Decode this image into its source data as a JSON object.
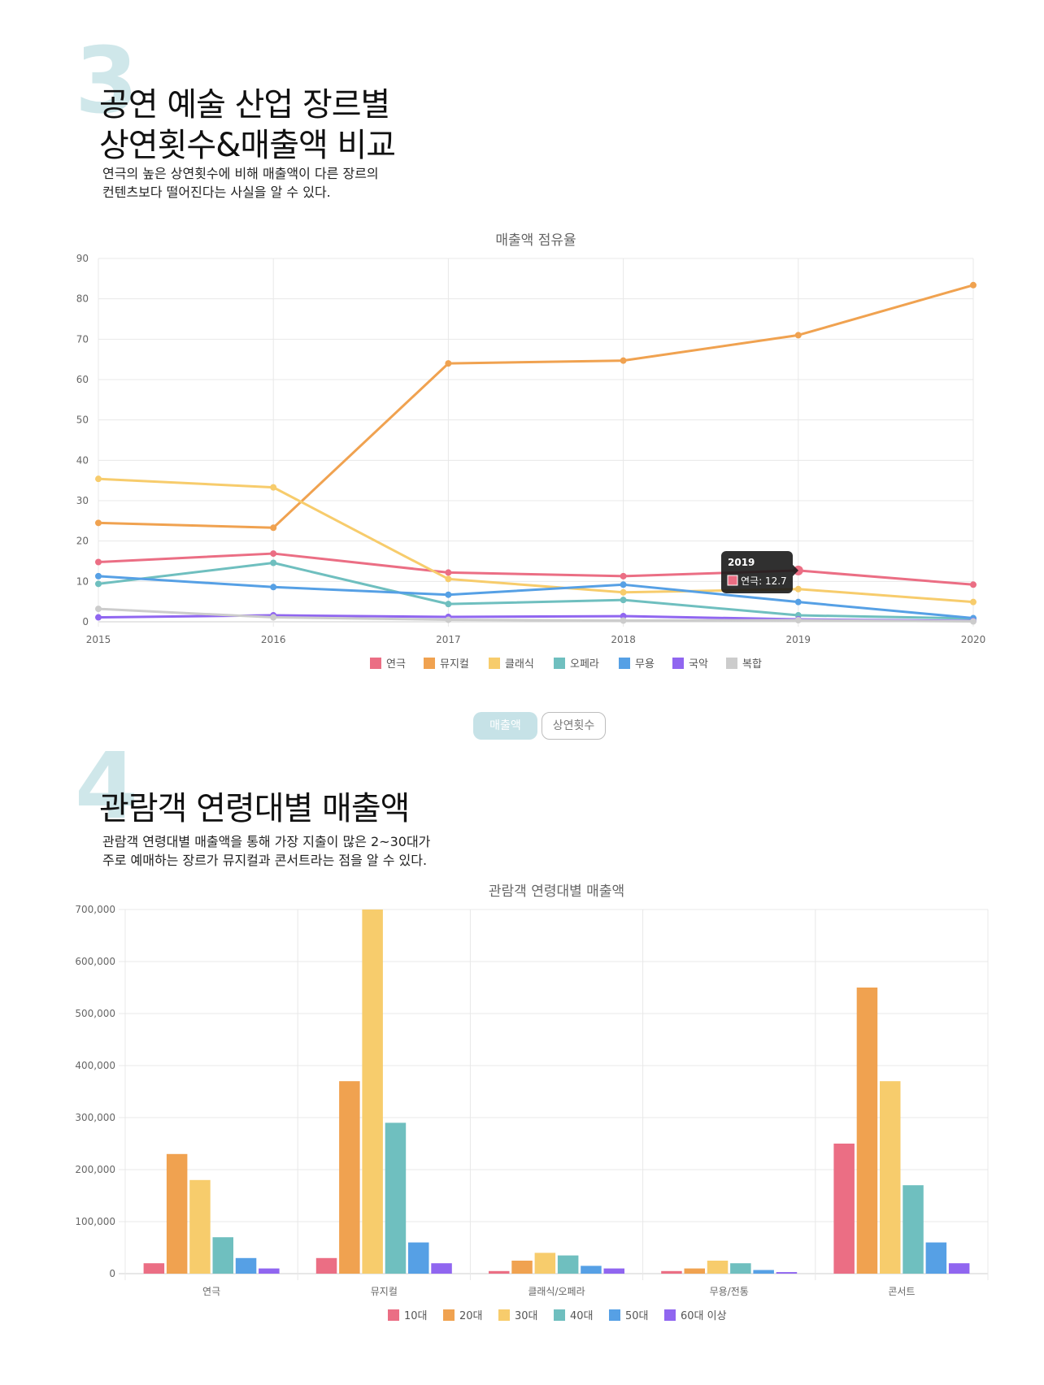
{
  "section3": {
    "number": "3",
    "title": "공연 예술 산업 장르별\n상연횟수&매출액 비교",
    "description": "연극의 높은 상연횟수에 비해 매출액이 다른 장르의\n컨텐츠보다 떨어진다는 사실을 알 수 있다."
  },
  "toggle": {
    "sales_label": "매출액",
    "performances_label": "상연횟수"
  },
  "section4": {
    "number": "4",
    "title": "관람객 연령대별 매출액",
    "description": "관람객 연령대별 매출액을 통해 가장 지출이 많은 2~30대가\n주로 예매하는 장르가 뮤지컬과 콘서트라는 점을 알 수 있다."
  },
  "colors": {
    "red": "#eb6e84",
    "orange": "#f0a250",
    "yellow": "#f7cc6c",
    "teal": "#6fbfbf",
    "blue": "#56a0e5",
    "purple": "#9066f0",
    "grey": "#cccccc",
    "section_number": "#cfe7ea"
  },
  "chart_data": [
    {
      "type": "line",
      "title": "매출액 점유율",
      "x": [
        "2015",
        "2016",
        "2017",
        "2018",
        "2019",
        "2020"
      ],
      "ylim": [
        0,
        90
      ],
      "yticks": [
        "0",
        "10",
        "20",
        "30",
        "40",
        "50",
        "60",
        "70",
        "80",
        "90"
      ],
      "grid": true,
      "legend_position": "bottom",
      "series": [
        {
          "name": "연극",
          "color": "#eb6e84",
          "values": [
            14.8,
            16.9,
            12.2,
            11.3,
            12.7,
            9.2
          ]
        },
        {
          "name": "뮤지컬",
          "color": "#f0a250",
          "values": [
            24.5,
            23.3,
            64.0,
            64.7,
            71.0,
            83.4
          ]
        },
        {
          "name": "클래식",
          "color": "#f7cc6c",
          "values": [
            35.4,
            33.3,
            10.6,
            7.3,
            8.1,
            4.9
          ]
        },
        {
          "name": "오페라",
          "color": "#6fbfbf",
          "values": [
            9.4,
            14.6,
            4.4,
            5.4,
            1.6,
            0.8
          ]
        },
        {
          "name": "무용",
          "color": "#56a0e5",
          "values": [
            11.3,
            8.6,
            6.7,
            9.2,
            4.9,
            0.9
          ]
        },
        {
          "name": "국악",
          "color": "#9066f0",
          "values": [
            1.1,
            1.6,
            1.2,
            1.4,
            0.6,
            0.2
          ]
        },
        {
          "name": "복합",
          "color": "#cccccc",
          "values": [
            3.2,
            1.1,
            0.5,
            0.3,
            0.4,
            0.1
          ]
        }
      ],
      "tooltip": {
        "title": "2019",
        "label": "연극: 12.7",
        "series": "연극",
        "x": "2019"
      }
    },
    {
      "type": "bar",
      "title": "관람객 연령대별 매출액",
      "categories": [
        "연극",
        "뮤지컬",
        "클래식/오페라",
        "무용/전통",
        "콘서트"
      ],
      "ylim": [
        0,
        700000
      ],
      "yticks": [
        "0",
        "100,000",
        "200,000",
        "300,000",
        "400,000",
        "500,000",
        "600,000",
        "700,000"
      ],
      "grid": true,
      "legend_position": "bottom",
      "series": [
        {
          "name": "10대",
          "color": "#eb6e84",
          "values": [
            20000,
            30000,
            5000,
            5000,
            250000
          ]
        },
        {
          "name": "20대",
          "color": "#f0a250",
          "values": [
            230000,
            370000,
            25000,
            10000,
            550000
          ]
        },
        {
          "name": "30대",
          "color": "#f7cc6c",
          "values": [
            180000,
            700000,
            40000,
            25000,
            370000
          ]
        },
        {
          "name": "40대",
          "color": "#6fbfbf",
          "values": [
            70000,
            290000,
            35000,
            20000,
            170000
          ]
        },
        {
          "name": "50대",
          "color": "#56a0e5",
          "values": [
            30000,
            60000,
            15000,
            7000,
            60000
          ]
        },
        {
          "name": "60대 이상",
          "color": "#9066f0",
          "values": [
            10000,
            20000,
            10000,
            3000,
            20000
          ]
        }
      ]
    }
  ]
}
